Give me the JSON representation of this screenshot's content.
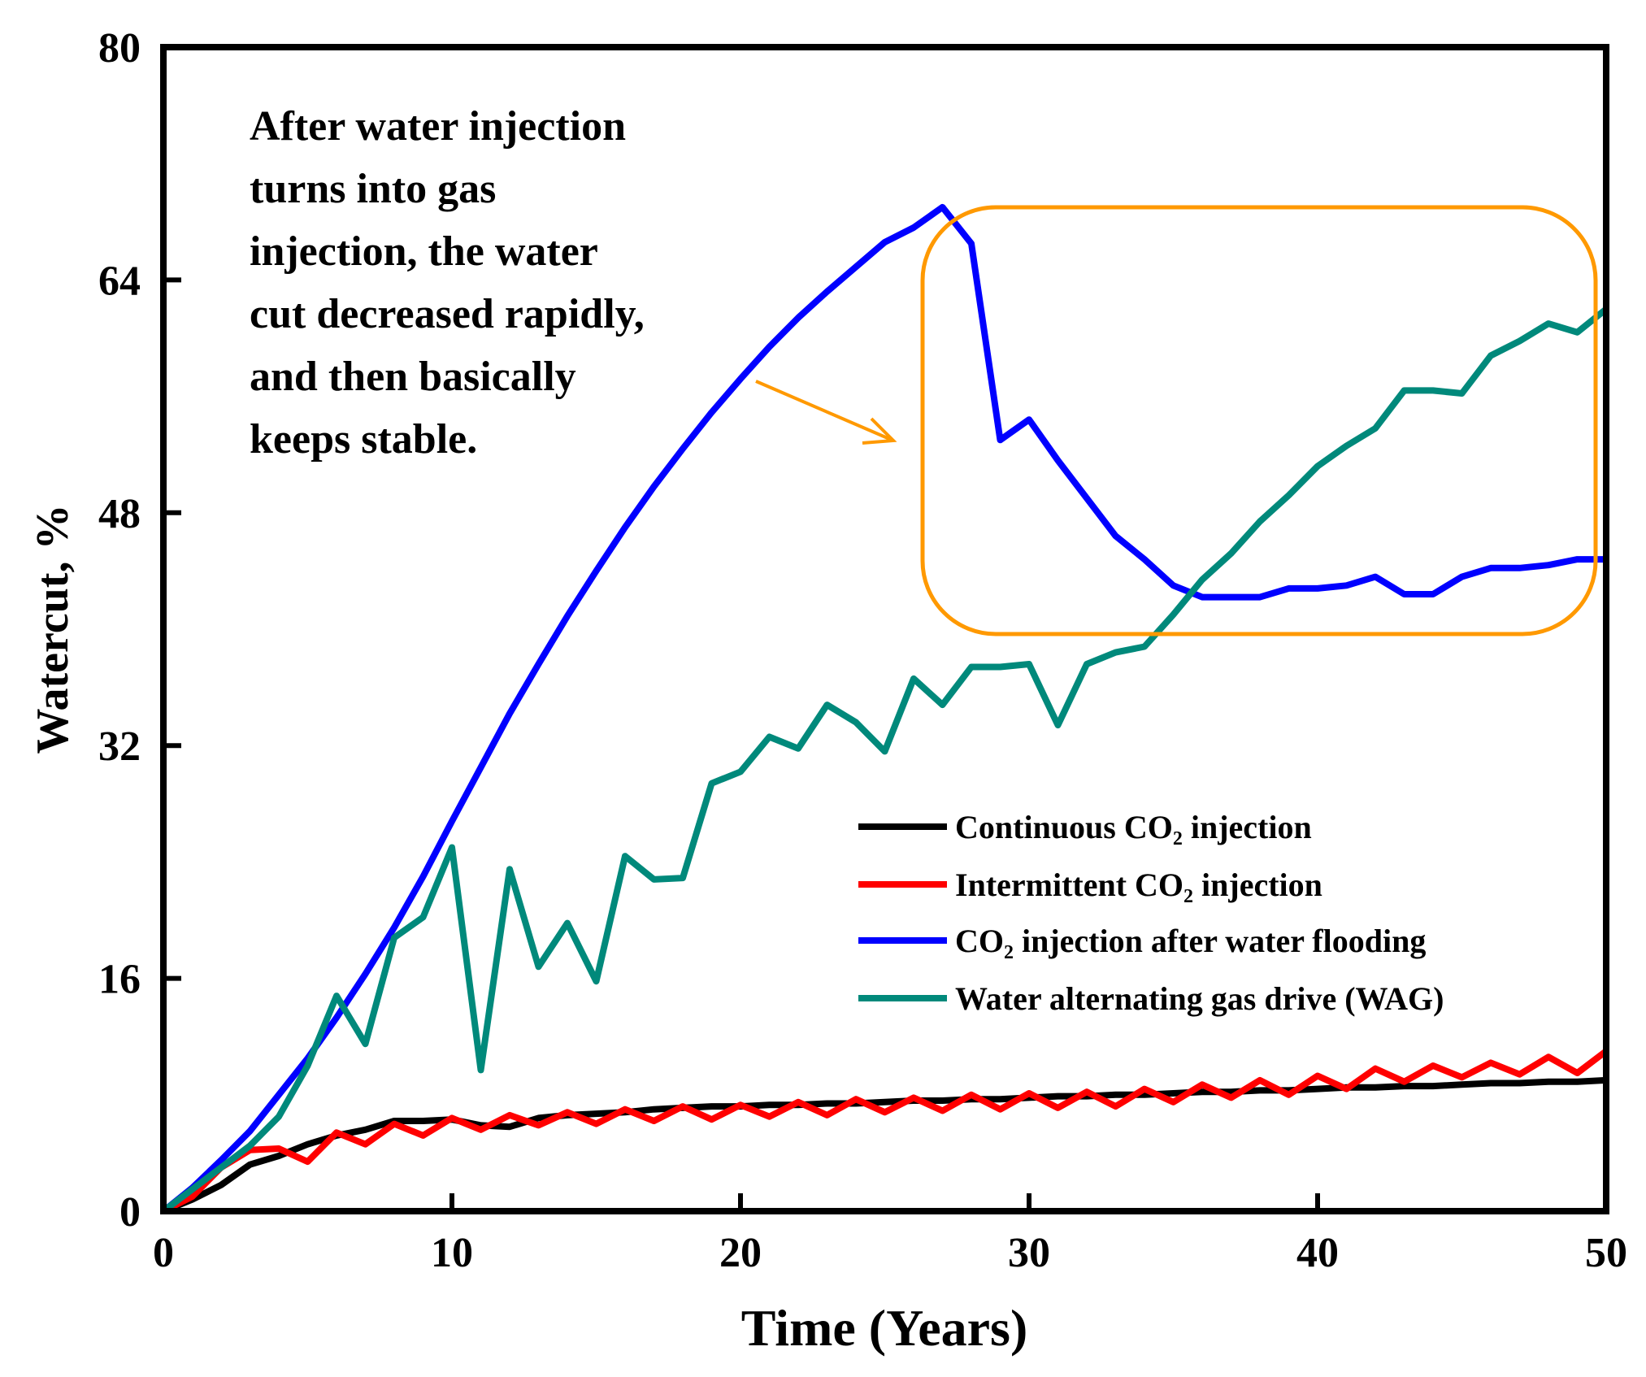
{
  "chart_data": {
    "type": "line",
    "title": "",
    "xlabel": "Time (Years)",
    "ylabel": "Watercut, %",
    "xlim": [
      0,
      50
    ],
    "ylim": [
      0,
      80
    ],
    "xticks": [
      0,
      10,
      20,
      30,
      40,
      50
    ],
    "yticks": [
      0,
      16,
      32,
      48,
      64,
      80
    ],
    "grid": false,
    "legend_position": "center-right",
    "annotation": {
      "lines": [
        "After water injection",
        "turns into gas",
        "injection, the water",
        "cut decreased rapidly,",
        "and then basically",
        "keeps stable."
      ],
      "highlight_color": "#FF9900"
    },
    "x": [
      0,
      1,
      2,
      3,
      4,
      5,
      6,
      7,
      8,
      9,
      10,
      11,
      12,
      13,
      14,
      15,
      16,
      17,
      18,
      19,
      20,
      21,
      22,
      23,
      24,
      25,
      26,
      27,
      28,
      29,
      30,
      31,
      32,
      33,
      34,
      35,
      36,
      37,
      38,
      39,
      40,
      41,
      42,
      43,
      44,
      45,
      46,
      47,
      48,
      49,
      50
    ],
    "series": [
      {
        "name": "Continuous CO₂ injection",
        "color": "#000000",
        "values": [
          0,
          0.8,
          1.8,
          3.2,
          3.8,
          4.6,
          5.2,
          5.6,
          6.2,
          6.2,
          6.3,
          5.9,
          5.8,
          6.4,
          6.6,
          6.7,
          6.8,
          7.0,
          7.1,
          7.2,
          7.2,
          7.3,
          7.3,
          7.4,
          7.4,
          7.5,
          7.6,
          7.6,
          7.7,
          7.7,
          7.8,
          7.9,
          7.9,
          8.0,
          8.0,
          8.1,
          8.2,
          8.2,
          8.3,
          8.3,
          8.4,
          8.5,
          8.5,
          8.6,
          8.6,
          8.7,
          8.8,
          8.8,
          8.9,
          8.9,
          9.0
        ]
      },
      {
        "name": "Intermittent CO₂ injection",
        "color": "#FF0000",
        "values": [
          0,
          1.0,
          3.0,
          4.2,
          4.3,
          3.4,
          5.4,
          4.6,
          6.0,
          5.2,
          6.4,
          5.6,
          6.6,
          5.9,
          6.8,
          6.0,
          7.0,
          6.2,
          7.2,
          6.3,
          7.3,
          6.5,
          7.5,
          6.6,
          7.7,
          6.8,
          7.8,
          6.9,
          8.0,
          7.0,
          8.1,
          7.1,
          8.2,
          7.2,
          8.4,
          7.5,
          8.7,
          7.8,
          9.0,
          8.0,
          9.3,
          8.4,
          9.8,
          8.9,
          10.0,
          9.2,
          10.2,
          9.4,
          10.6,
          9.5,
          11.0
        ]
      },
      {
        "name": "CO₂ injection after water flooding",
        "color": "#0000FF",
        "values": [
          0,
          1.6,
          3.5,
          5.5,
          8.0,
          10.5,
          13.3,
          16.3,
          19.5,
          23.0,
          26.8,
          30.5,
          34.2,
          37.6,
          40.9,
          44.0,
          47.0,
          49.8,
          52.4,
          54.9,
          57.2,
          59.4,
          61.4,
          63.2,
          64.9,
          66.6,
          67.6,
          69.0,
          66.5,
          53.0,
          54.4,
          51.6,
          49.0,
          46.4,
          44.8,
          43.0,
          42.2,
          42.2,
          42.2,
          42.8,
          42.8,
          43.0,
          43.6,
          42.4,
          42.4,
          43.6,
          44.2,
          44.2,
          44.4,
          44.8,
          44.8
        ]
      },
      {
        "name": "Water alternating gas drive (WAG)",
        "color": "#00897B",
        "values": [
          0,
          1.5,
          3.0,
          4.5,
          6.5,
          10.0,
          14.8,
          11.5,
          18.8,
          20.2,
          25.0,
          9.7,
          23.5,
          16.8,
          19.8,
          15.8,
          24.4,
          22.8,
          22.9,
          29.4,
          30.2,
          32.6,
          31.8,
          34.8,
          33.6,
          31.6,
          36.6,
          34.8,
          37.4,
          37.4,
          37.6,
          33.4,
          37.6,
          38.4,
          38.8,
          41.0,
          43.4,
          45.2,
          47.4,
          49.2,
          51.2,
          52.6,
          53.8,
          56.4,
          56.4,
          56.2,
          58.8,
          59.8,
          61.0,
          60.4,
          62.0
        ]
      }
    ]
  }
}
